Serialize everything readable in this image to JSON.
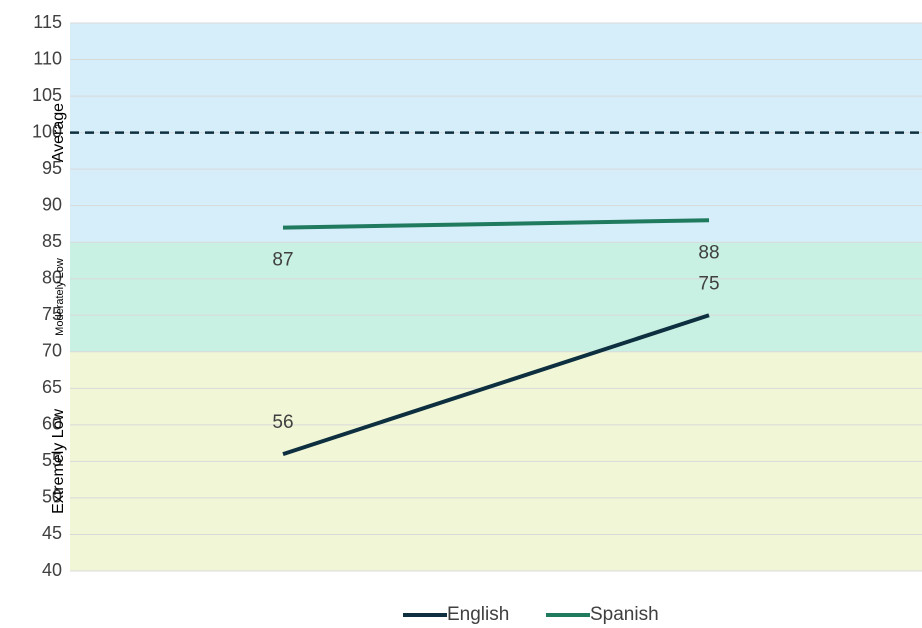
{
  "chart_data": {
    "type": "line",
    "categories": [
      null,
      null
    ],
    "series": [
      {
        "name": "English",
        "color": "#0d2f3f",
        "values": [
          56,
          75
        ],
        "label_position": "above"
      },
      {
        "name": "Spanish",
        "color": "#1f7a5e",
        "values": [
          87,
          88
        ],
        "label_position": "below"
      }
    ],
    "ylim": [
      40,
      115
    ],
    "yticks": [
      40,
      45,
      50,
      55,
      60,
      65,
      70,
      75,
      80,
      85,
      90,
      95,
      100,
      105,
      110,
      115
    ],
    "grid": true,
    "bands": [
      {
        "label": "Extremely Low",
        "from": 40,
        "to": 70,
        "color": "#f0f6d6"
      },
      {
        "label": "Moderately Low",
        "from": 70,
        "to": 85,
        "color": "#c8f0e3"
      },
      {
        "label": "Average",
        "from": 85,
        "to": 115,
        "color": "#d6eefa"
      }
    ],
    "reference_line": {
      "value": 100,
      "style": "dashed",
      "color": "#0d2f3f"
    },
    "legend": "bottom"
  }
}
